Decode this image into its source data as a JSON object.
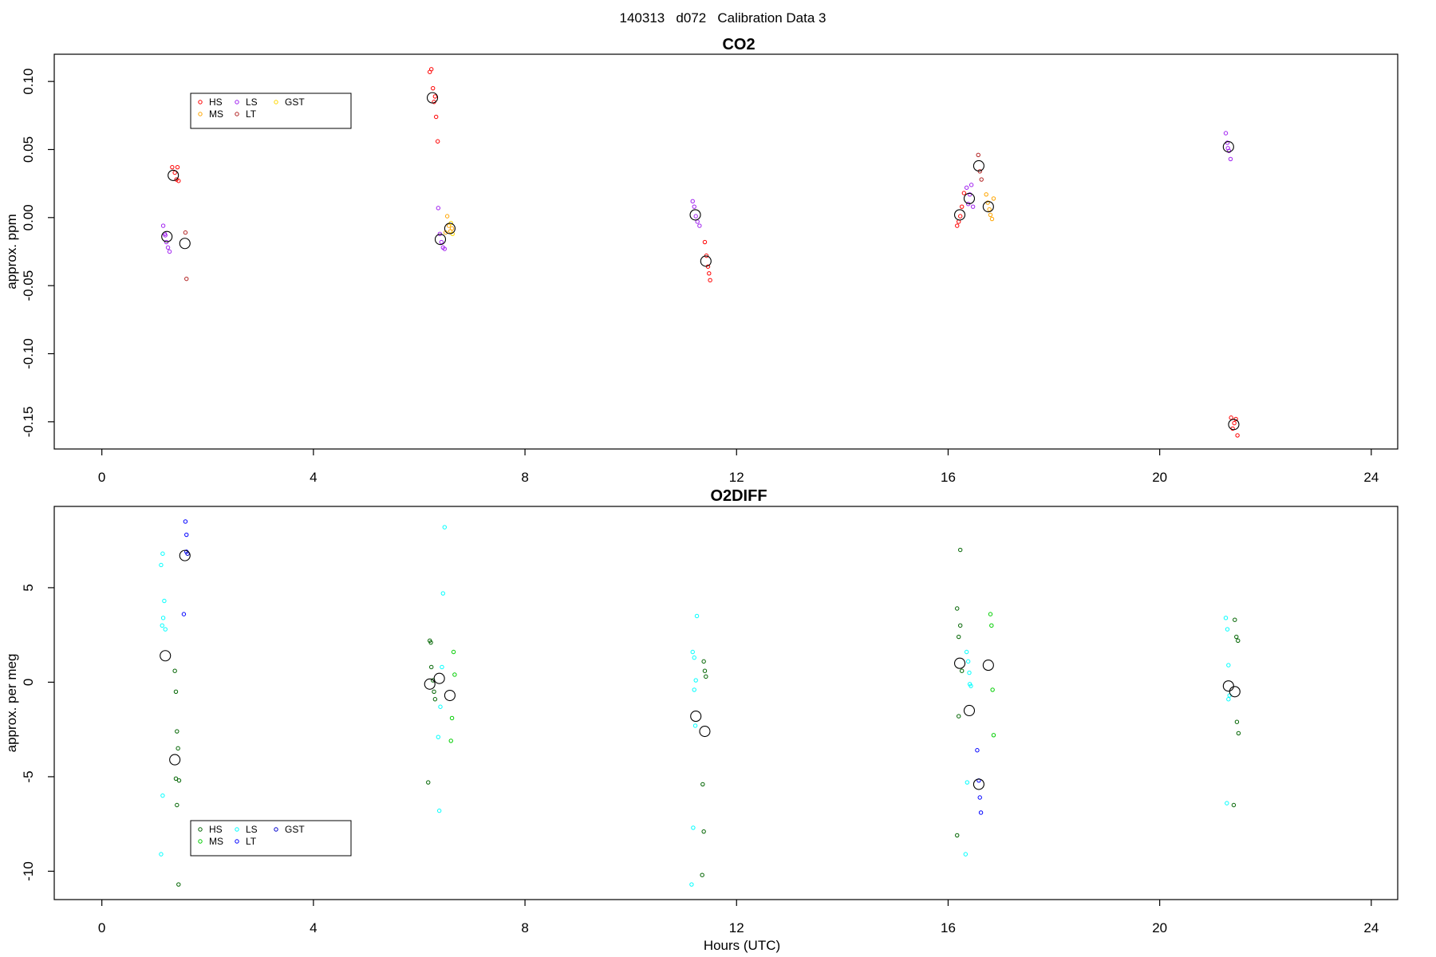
{
  "page_title": "140313   d072   Calibration Data 3",
  "chart_data": [
    {
      "type": "scatter",
      "title": "CO2",
      "xlabel": "",
      "ylabel": "approx. ppm",
      "xlim": [
        -0.9,
        24.5
      ],
      "ylim": [
        -0.17,
        0.12
      ],
      "x_ticks": [
        0,
        4,
        8,
        12,
        16,
        20,
        24
      ],
      "y_ticks": [
        -0.15,
        -0.1,
        -0.05,
        0.0,
        0.05,
        0.1
      ],
      "y_tick_labels": [
        "-0.15",
        "-0.10",
        "-0.05",
        "0.00",
        "0.05",
        "0.10"
      ],
      "legend": {
        "placement": "top-left",
        "entries": [
          {
            "name": "HS",
            "color": "#ff0000"
          },
          {
            "name": "MS",
            "color": "#ffa500"
          },
          {
            "name": "GST",
            "color": "#ffd700"
          },
          {
            "name": "LS",
            "color": "#a020f0"
          },
          {
            "name": "LT",
            "color": "#b22222"
          }
        ]
      },
      "series": [
        {
          "name": "HS",
          "color": "#ff0000",
          "points": [
            [
              1.33,
              0.037
            ],
            [
              1.38,
              0.033
            ],
            [
              1.41,
              0.028
            ],
            [
              1.43,
              0.037
            ],
            [
              1.45,
              0.027
            ],
            [
              6.2,
              0.107
            ],
            [
              6.23,
              0.109
            ],
            [
              6.26,
              0.095
            ],
            [
              6.28,
              0.085
            ],
            [
              6.3,
              0.089
            ],
            [
              6.32,
              0.074
            ],
            [
              6.35,
              0.056
            ],
            [
              11.4,
              -0.018
            ],
            [
              11.43,
              -0.028
            ],
            [
              11.46,
              -0.036
            ],
            [
              11.48,
              -0.041
            ],
            [
              11.5,
              -0.046
            ],
            [
              16.17,
              -0.006
            ],
            [
              16.2,
              -0.003
            ],
            [
              16.23,
              0.001
            ],
            [
              16.26,
              0.008
            ],
            [
              16.3,
              0.018
            ],
            [
              21.35,
              -0.147
            ],
            [
              21.38,
              -0.155
            ],
            [
              21.41,
              -0.151
            ],
            [
              21.44,
              -0.148
            ],
            [
              21.47,
              -0.16
            ]
          ]
        },
        {
          "name": "LS",
          "color": "#a020f0",
          "points": [
            [
              1.16,
              -0.006
            ],
            [
              1.19,
              -0.012
            ],
            [
              1.22,
              -0.018
            ],
            [
              1.25,
              -0.022
            ],
            [
              1.28,
              -0.025
            ],
            [
              1.2,
              -0.013
            ],
            [
              6.36,
              0.007
            ],
            [
              6.39,
              -0.012
            ],
            [
              6.42,
              -0.018
            ],
            [
              6.45,
              -0.022
            ],
            [
              6.48,
              -0.023
            ],
            [
              11.17,
              0.012
            ],
            [
              11.2,
              0.008
            ],
            [
              11.23,
              0.001
            ],
            [
              11.26,
              -0.003
            ],
            [
              11.3,
              -0.006
            ],
            [
              16.38,
              0.01
            ],
            [
              16.41,
              0.017
            ],
            [
              16.44,
              0.024
            ],
            [
              16.47,
              0.008
            ],
            [
              16.35,
              0.022
            ],
            [
              21.25,
              0.062
            ],
            [
              21.28,
              0.055
            ],
            [
              21.31,
              0.049
            ],
            [
              21.34,
              0.043
            ],
            [
              21.29,
              0.051
            ]
          ]
        },
        {
          "name": "MS",
          "color": "#ffa500",
          "points": [
            [
              6.53,
              0.001
            ],
            [
              6.56,
              -0.006
            ],
            [
              6.59,
              -0.01
            ],
            [
              6.62,
              -0.008
            ],
            [
              6.5,
              -0.011
            ],
            [
              16.72,
              0.017
            ],
            [
              16.75,
              0.011
            ],
            [
              16.78,
              0.006
            ],
            [
              16.8,
              0.002
            ],
            [
              16.83,
              -0.001
            ],
            [
              16.86,
              0.014
            ]
          ]
        },
        {
          "name": "LT",
          "color": "#b22222",
          "points": [
            [
              1.58,
              -0.011
            ],
            [
              1.6,
              -0.045
            ],
            [
              16.57,
              0.046
            ],
            [
              16.6,
              0.034
            ],
            [
              16.63,
              0.028
            ]
          ]
        },
        {
          "name": "GST",
          "color": "#ffd700",
          "points": [
            [
              6.6,
              -0.004
            ],
            [
              6.63,
              -0.012
            ]
          ]
        }
      ],
      "means": [
        [
          1.35,
          0.031
        ],
        [
          1.23,
          -0.014
        ],
        [
          1.57,
          -0.019
        ],
        [
          6.25,
          0.088
        ],
        [
          6.4,
          -0.016
        ],
        [
          6.58,
          -0.008
        ],
        [
          11.22,
          0.002
        ],
        [
          11.42,
          -0.032
        ],
        [
          16.22,
          0.002
        ],
        [
          16.4,
          0.014
        ],
        [
          16.58,
          0.038
        ],
        [
          16.76,
          0.008
        ],
        [
          21.3,
          0.052
        ],
        [
          21.4,
          -0.152
        ]
      ]
    },
    {
      "type": "scatter",
      "title": "O2DIFF",
      "xlabel": "Hours (UTC)",
      "ylabel": "approx. per meg",
      "xlim": [
        -0.9,
        24.5
      ],
      "ylim": [
        -11.5,
        9.3
      ],
      "x_ticks": [
        0,
        4,
        8,
        12,
        16,
        20,
        24
      ],
      "y_ticks": [
        -10,
        -5,
        0,
        5
      ],
      "y_tick_labels": [
        "-10",
        "-5",
        "0",
        "5"
      ],
      "legend": {
        "placement": "bottom-left",
        "entries": [
          {
            "name": "HS",
            "color": "#006400"
          },
          {
            "name": "MS",
            "color": "#00cd00"
          },
          {
            "name": "GST",
            "color": "#0000cd"
          },
          {
            "name": "LS",
            "color": "#00ffff"
          },
          {
            "name": "LT",
            "color": "#0000ff"
          }
        ]
      },
      "series": [
        {
          "name": "HS",
          "color": "#006400",
          "points": [
            [
              1.38,
              0.6
            ],
            [
              1.4,
              -0.5
            ],
            [
              1.42,
              -2.6
            ],
            [
              1.44,
              -3.5
            ],
            [
              1.46,
              -5.2
            ],
            [
              1.4,
              -5.1
            ],
            [
              1.42,
              -6.5
            ],
            [
              1.45,
              -10.7
            ],
            [
              6.2,
              2.2
            ],
            [
              6.23,
              0.8
            ],
            [
              6.26,
              0.1
            ],
            [
              6.28,
              -0.5
            ],
            [
              6.3,
              -0.9
            ],
            [
              6.17,
              -5.3
            ],
            [
              6.22,
              2.1
            ],
            [
              11.38,
              1.1
            ],
            [
              11.4,
              0.6
            ],
            [
              11.42,
              0.3
            ],
            [
              11.36,
              -5.4
            ],
            [
              11.38,
              -7.9
            ],
            [
              11.35,
              -10.2
            ],
            [
              16.17,
              3.9
            ],
            [
              16.2,
              2.4
            ],
            [
              16.23,
              3.0
            ],
            [
              16.26,
              0.6
            ],
            [
              16.2,
              -1.8
            ],
            [
              16.17,
              -8.1
            ],
            [
              16.23,
              7.0
            ],
            [
              21.42,
              3.3
            ],
            [
              21.45,
              2.4
            ],
            [
              21.48,
              2.2
            ],
            [
              21.46,
              -2.1
            ],
            [
              21.49,
              -2.7
            ],
            [
              21.4,
              -6.5
            ]
          ]
        },
        {
          "name": "LS",
          "color": "#00ffff",
          "points": [
            [
              1.12,
              6.2
            ],
            [
              1.15,
              6.8
            ],
            [
              1.18,
              4.3
            ],
            [
              1.16,
              3.4
            ],
            [
              1.14,
              3.0
            ],
            [
              1.2,
              2.8
            ],
            [
              1.15,
              -6.0
            ],
            [
              1.12,
              -9.1
            ],
            [
              6.36,
              -2.9
            ],
            [
              6.4,
              -1.3
            ],
            [
              6.43,
              0.8
            ],
            [
              6.45,
              4.7
            ],
            [
              6.48,
              8.2
            ],
            [
              6.38,
              -6.8
            ],
            [
              11.17,
              1.6
            ],
            [
              11.2,
              1.3
            ],
            [
              11.23,
              0.1
            ],
            [
              11.25,
              3.5
            ],
            [
              11.2,
              -0.4
            ],
            [
              11.18,
              -7.7
            ],
            [
              11.15,
              -10.7
            ],
            [
              11.22,
              -2.3
            ],
            [
              16.35,
              1.6
            ],
            [
              16.38,
              1.1
            ],
            [
              16.4,
              0.5
            ],
            [
              16.43,
              -0.2
            ],
            [
              16.36,
              -5.3
            ],
            [
              16.33,
              -9.1
            ],
            [
              16.41,
              -0.1
            ],
            [
              21.25,
              3.4
            ],
            [
              21.28,
              2.8
            ],
            [
              21.3,
              0.9
            ],
            [
              21.32,
              -0.7
            ],
            [
              21.3,
              -0.9
            ],
            [
              21.27,
              -6.4
            ]
          ]
        },
        {
          "name": "MS",
          "color": "#00cd00",
          "points": [
            [
              6.65,
              1.6
            ],
            [
              6.67,
              0.4
            ],
            [
              6.62,
              -1.9
            ],
            [
              6.6,
              -3.1
            ],
            [
              16.8,
              3.6
            ],
            [
              16.82,
              3.0
            ],
            [
              16.84,
              -0.4
            ],
            [
              16.86,
              -2.8
            ]
          ]
        },
        {
          "name": "LT",
          "color": "#0000ff",
          "points": [
            [
              1.58,
              8.5
            ],
            [
              1.6,
              7.8
            ],
            [
              1.6,
              6.9
            ],
            [
              1.55,
              3.6
            ],
            [
              16.55,
              -3.6
            ],
            [
              16.58,
              -5.2
            ],
            [
              16.6,
              -6.1
            ],
            [
              16.62,
              -6.9
            ]
          ]
        },
        {
          "name": "GST",
          "color": "#0000cd",
          "points": [
            [
              1.62,
              6.8
            ]
          ]
        }
      ],
      "means": [
        [
          1.2,
          1.4
        ],
        [
          1.38,
          -4.1
        ],
        [
          1.57,
          6.7
        ],
        [
          6.2,
          -0.1
        ],
        [
          6.38,
          0.2
        ],
        [
          6.58,
          -0.7
        ],
        [
          11.23,
          -1.8
        ],
        [
          11.4,
          -2.6
        ],
        [
          16.22,
          1.0
        ],
        [
          16.4,
          -1.5
        ],
        [
          16.58,
          -5.4
        ],
        [
          16.76,
          0.9
        ],
        [
          21.3,
          -0.2
        ],
        [
          21.42,
          -0.5
        ]
      ]
    }
  ]
}
